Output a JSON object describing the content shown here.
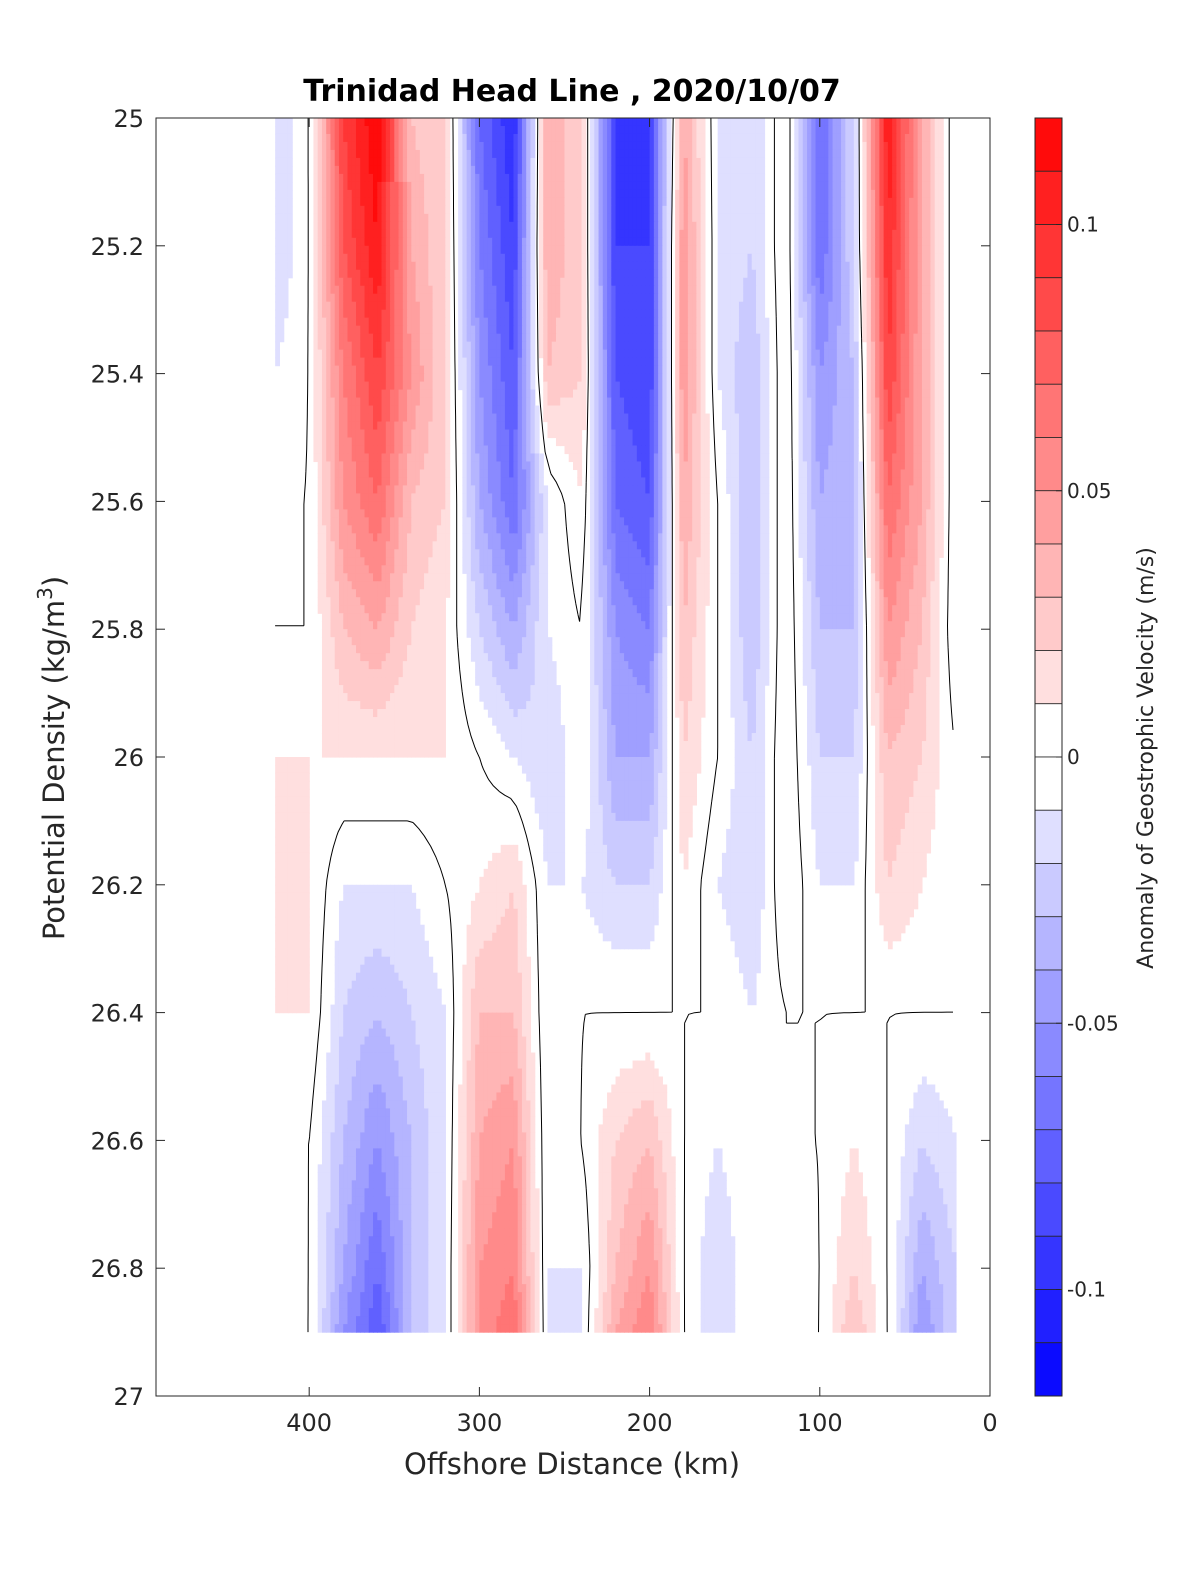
{
  "chart_data": {
    "type": "heatmap",
    "title": "Trinidad Head Line , 2020/10/07",
    "xlabel": "Offshore Distance (km)",
    "ylabel_main": "Potential Density (kg/m",
    "ylabel_sup": "3",
    "ylabel_close": ")",
    "colorbar_label": "Anomaly of Geostrophic Velocity (m/s)",
    "xlim": [
      490,
      0
    ],
    "x_reversed": true,
    "ylim": [
      25,
      27
    ],
    "y_reversed": true,
    "xticks": [
      400,
      300,
      200,
      100,
      0
    ],
    "xtick_labels": [
      "400",
      "300",
      "200",
      "100",
      "0"
    ],
    "yticks": [
      25,
      25.2,
      25.4,
      25.6,
      25.8,
      26,
      26.2,
      26.4,
      26.6,
      26.8,
      27
    ],
    "ytick_labels": [
      "25",
      "25.2",
      "25.4",
      "25.6",
      "25.8",
      "26",
      "26.2",
      "26.4",
      "26.6",
      "26.8",
      "27"
    ],
    "clim": [
      -0.12,
      0.12
    ],
    "cb_ticks": [
      0.1,
      0.05,
      0,
      -0.05,
      -0.1
    ],
    "cb_tick_labels": [
      "0.1",
      "0.05",
      "0",
      "-0.05",
      "-0.1"
    ],
    "levels_step": 0.01,
    "colormap": {
      "negative": "#0000ff",
      "zero": "#ffffff",
      "positive": "#ff0000"
    },
    "data_extent": {
      "x": [
        15,
        420
      ],
      "y": [
        25,
        26.9
      ]
    },
    "x": [
      420,
      400,
      380,
      360,
      340,
      320,
      300,
      280,
      260,
      240,
      220,
      200,
      180,
      160,
      140,
      120,
      100,
      80,
      60,
      40,
      20
    ],
    "y": [
      25.0,
      25.2,
      25.4,
      25.6,
      25.8,
      26.0,
      26.2,
      26.4,
      26.6,
      26.8,
      26.9
    ],
    "values": [
      [
        -0.02,
        0.0,
        0.09,
        0.12,
        0.03,
        0.02,
        -0.07,
        -0.1,
        0.04,
        0.02,
        -0.09,
        -0.09,
        0.04,
        -0.01,
        -0.02,
        0.01,
        -0.07,
        -0.02,
        0.11,
        0.04,
        -0.01
      ],
      [
        -0.02,
        0.0,
        0.08,
        0.11,
        0.04,
        0.02,
        -0.06,
        -0.09,
        0.04,
        0.02,
        -0.09,
        -0.09,
        0.05,
        -0.01,
        -0.02,
        0.01,
        -0.07,
        -0.02,
        0.1,
        0.04,
        -0.01
      ],
      [
        -0.01,
        0.0,
        0.06,
        0.09,
        0.05,
        0.02,
        -0.05,
        -0.08,
        0.03,
        0.02,
        -0.08,
        -0.09,
        0.05,
        -0.01,
        -0.03,
        0.01,
        -0.05,
        -0.03,
        0.09,
        0.04,
        -0.01
      ],
      [
        0.0,
        0.0,
        0.05,
        0.07,
        0.03,
        0.02,
        -0.04,
        -0.07,
        -0.01,
        0.01,
        -0.07,
        -0.08,
        0.04,
        0.0,
        -0.03,
        0.01,
        -0.04,
        -0.03,
        0.07,
        0.04,
        -0.01
      ],
      [
        0.0,
        0.0,
        0.03,
        0.04,
        0.02,
        0.01,
        -0.02,
        -0.04,
        -0.01,
        0.0,
        -0.05,
        -0.06,
        0.03,
        0.0,
        -0.03,
        0.01,
        -0.03,
        -0.03,
        0.05,
        0.03,
        -0.01
      ],
      [
        0.01,
        0.01,
        0.01,
        0.01,
        0.01,
        0.01,
        0.0,
        -0.01,
        -0.02,
        0.0,
        -0.04,
        -0.04,
        0.02,
        0.0,
        -0.02,
        0.01,
        -0.02,
        -0.02,
        0.03,
        0.02,
        0.0
      ],
      [
        0.01,
        0.01,
        -0.01,
        -0.01,
        -0.01,
        0.0,
        0.01,
        0.02,
        -0.01,
        -0.01,
        -0.02,
        -0.02,
        0.01,
        -0.01,
        -0.02,
        0.01,
        -0.01,
        -0.01,
        0.02,
        0.01,
        0.0
      ],
      [
        0.01,
        0.01,
        -0.02,
        -0.03,
        -0.02,
        -0.01,
        0.03,
        0.03,
        -0.01,
        0.0,
        0.0,
        0.0,
        0.0,
        0.0,
        -0.01,
        0.0,
        0.0,
        0.0,
        0.0,
        0.0,
        0.0
      ],
      [
        0.01,
        0.0,
        -0.03,
        -0.05,
        -0.03,
        -0.01,
        0.04,
        0.05,
        -0.01,
        0.0,
        0.02,
        0.03,
        0.0,
        -0.01,
        0.0,
        0.0,
        0.0,
        0.01,
        0.0,
        -0.02,
        -0.01
      ],
      [
        0.01,
        0.0,
        -0.04,
        -0.07,
        -0.03,
        -0.01,
        0.05,
        0.06,
        -0.01,
        -0.01,
        0.03,
        0.05,
        0.0,
        -0.02,
        0.0,
        -0.01,
        0.0,
        0.02,
        0.0,
        -0.04,
        -0.02
      ],
      [
        0.01,
        0.0,
        -0.05,
        -0.08,
        -0.03,
        -0.01,
        0.05,
        0.07,
        -0.01,
        -0.01,
        0.04,
        0.06,
        0.0,
        -0.02,
        0.0,
        -0.01,
        0.0,
        0.03,
        0.0,
        -0.05,
        -0.02
      ]
    ]
  }
}
